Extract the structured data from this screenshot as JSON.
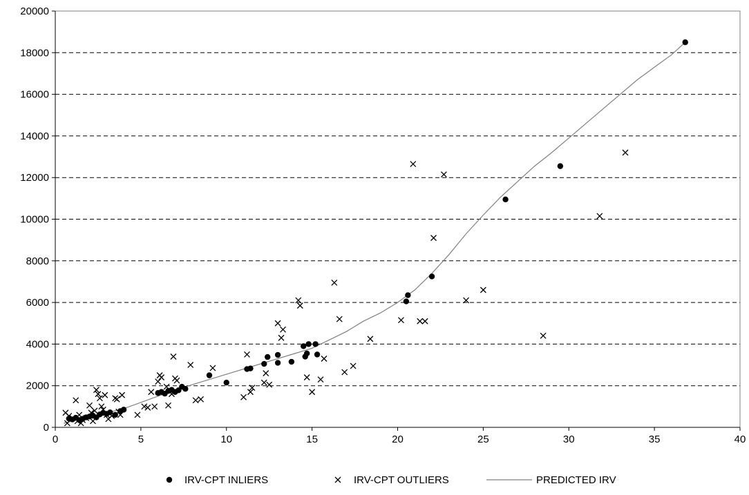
{
  "chart_data": {
    "type": "scatter",
    "title": "",
    "xlabel": "",
    "ylabel": "",
    "xlim": [
      0,
      40
    ],
    "ylim": [
      0,
      20000
    ],
    "x_ticks": [
      "0",
      "5",
      "10",
      "15",
      "20",
      "25",
      "30",
      "35",
      "40"
    ],
    "y_ticks": [
      "0",
      "2000",
      "4000",
      "6000",
      "8000",
      "10000",
      "12000",
      "14000",
      "16000",
      "18000",
      "20000"
    ],
    "grid": "horizontal-dashed",
    "legend_position": "bottom",
    "colors": {
      "inlier": "#000000",
      "outlier": "#000000",
      "predicted": "#808080"
    },
    "series": [
      {
        "name": "IRV-CPT INLIERS",
        "marker": "circle",
        "points": [
          [
            0.8,
            420
          ],
          [
            1.0,
            380
          ],
          [
            1.2,
            460
          ],
          [
            1.4,
            350
          ],
          [
            1.6,
            410
          ],
          [
            1.8,
            480
          ],
          [
            2.0,
            520
          ],
          [
            2.2,
            560
          ],
          [
            2.4,
            480
          ],
          [
            2.6,
            620
          ],
          [
            2.8,
            700
          ],
          [
            3.0,
            650
          ],
          [
            3.2,
            720
          ],
          [
            3.5,
            600
          ],
          [
            3.8,
            780
          ],
          [
            4.0,
            850
          ],
          [
            6.0,
            1650
          ],
          [
            6.2,
            1700
          ],
          [
            6.4,
            1620
          ],
          [
            6.6,
            1750
          ],
          [
            6.8,
            1800
          ],
          [
            7.0,
            1700
          ],
          [
            7.2,
            1780
          ],
          [
            7.4,
            1950
          ],
          [
            7.6,
            1850
          ],
          [
            9.0,
            2500
          ],
          [
            10.0,
            2150
          ],
          [
            11.2,
            2800
          ],
          [
            11.4,
            2830
          ],
          [
            12.2,
            3050
          ],
          [
            12.4,
            3380
          ],
          [
            13.0,
            3100
          ],
          [
            13.0,
            3480
          ],
          [
            13.8,
            3150
          ],
          [
            14.5,
            3900
          ],
          [
            14.8,
            4000
          ],
          [
            14.7,
            3550
          ],
          [
            14.6,
            3400
          ],
          [
            15.2,
            4000
          ],
          [
            15.3,
            3500
          ],
          [
            20.5,
            6050
          ],
          [
            20.6,
            6350
          ],
          [
            22.0,
            7250
          ],
          [
            26.3,
            10950
          ],
          [
            29.5,
            12550
          ],
          [
            36.8,
            18500
          ]
        ]
      },
      {
        "name": "IRV-CPT OUTLIERS",
        "marker": "x",
        "points": [
          [
            0.6,
            700
          ],
          [
            0.7,
            200
          ],
          [
            0.8,
            550
          ],
          [
            1.0,
            450
          ],
          [
            1.2,
            1300
          ],
          [
            1.3,
            300
          ],
          [
            1.4,
            600
          ],
          [
            1.5,
            200
          ],
          [
            1.6,
            350
          ],
          [
            1.8,
            450
          ],
          [
            2.0,
            1050
          ],
          [
            2.1,
            700
          ],
          [
            2.2,
            300
          ],
          [
            2.3,
            800
          ],
          [
            2.4,
            1800
          ],
          [
            2.5,
            1600
          ],
          [
            2.6,
            1400
          ],
          [
            2.7,
            1000
          ],
          [
            2.8,
            850
          ],
          [
            2.9,
            1550
          ],
          [
            3.0,
            600
          ],
          [
            3.1,
            400
          ],
          [
            3.3,
            550
          ],
          [
            3.5,
            1400
          ],
          [
            3.6,
            1350
          ],
          [
            3.7,
            750
          ],
          [
            3.8,
            600
          ],
          [
            3.9,
            1550
          ],
          [
            4.8,
            600
          ],
          [
            5.2,
            1000
          ],
          [
            5.4,
            950
          ],
          [
            5.6,
            1700
          ],
          [
            5.8,
            1000
          ],
          [
            6.0,
            2200
          ],
          [
            6.1,
            2500
          ],
          [
            6.2,
            2400
          ],
          [
            6.5,
            1950
          ],
          [
            6.6,
            1050
          ],
          [
            6.8,
            1600
          ],
          [
            6.9,
            3400
          ],
          [
            7.0,
            2350
          ],
          [
            7.1,
            2250
          ],
          [
            7.9,
            3000
          ],
          [
            8.2,
            1300
          ],
          [
            8.5,
            1350
          ],
          [
            9.2,
            2850
          ],
          [
            11.0,
            1450
          ],
          [
            11.2,
            3500
          ],
          [
            11.4,
            1700
          ],
          [
            11.5,
            1900
          ],
          [
            12.2,
            2150
          ],
          [
            12.3,
            2600
          ],
          [
            12.5,
            2050
          ],
          [
            13.0,
            5000
          ],
          [
            13.2,
            4300
          ],
          [
            13.3,
            4700
          ],
          [
            14.2,
            6100
          ],
          [
            14.3,
            5850
          ],
          [
            14.7,
            2400
          ],
          [
            15.0,
            1700
          ],
          [
            15.5,
            2300
          ],
          [
            15.7,
            3300
          ],
          [
            16.3,
            6950
          ],
          [
            16.6,
            5200
          ],
          [
            16.9,
            2650
          ],
          [
            17.4,
            2950
          ],
          [
            18.4,
            4250
          ],
          [
            20.2,
            5150
          ],
          [
            20.9,
            12650
          ],
          [
            21.3,
            5100
          ],
          [
            21.6,
            5100
          ],
          [
            22.1,
            9100
          ],
          [
            22.7,
            12150
          ],
          [
            24.0,
            6100
          ],
          [
            25.0,
            6600
          ],
          [
            28.5,
            4400
          ],
          [
            31.8,
            10150
          ],
          [
            33.3,
            13200
          ]
        ]
      },
      {
        "name": "PREDICTED IRV",
        "marker": "line",
        "points": [
          [
            0.5,
            200
          ],
          [
            2,
            500
          ],
          [
            4,
            900
          ],
          [
            6,
            1500
          ],
          [
            8,
            2050
          ],
          [
            10,
            2550
          ],
          [
            12,
            3050
          ],
          [
            14,
            3550
          ],
          [
            15,
            3800
          ],
          [
            16,
            4200
          ],
          [
            17,
            4600
          ],
          [
            18,
            5100
          ],
          [
            19,
            5500
          ],
          [
            20,
            6000
          ],
          [
            21,
            6600
          ],
          [
            22,
            7400
          ],
          [
            23,
            8300
          ],
          [
            24,
            9300
          ],
          [
            25,
            10200
          ],
          [
            26,
            11050
          ],
          [
            27,
            11800
          ],
          [
            28,
            12550
          ],
          [
            29,
            13200
          ],
          [
            30,
            13900
          ],
          [
            31,
            14600
          ],
          [
            32,
            15300
          ],
          [
            33,
            16000
          ],
          [
            34,
            16700
          ],
          [
            35,
            17300
          ],
          [
            36,
            17900
          ],
          [
            36.8,
            18500
          ]
        ]
      }
    ]
  }
}
